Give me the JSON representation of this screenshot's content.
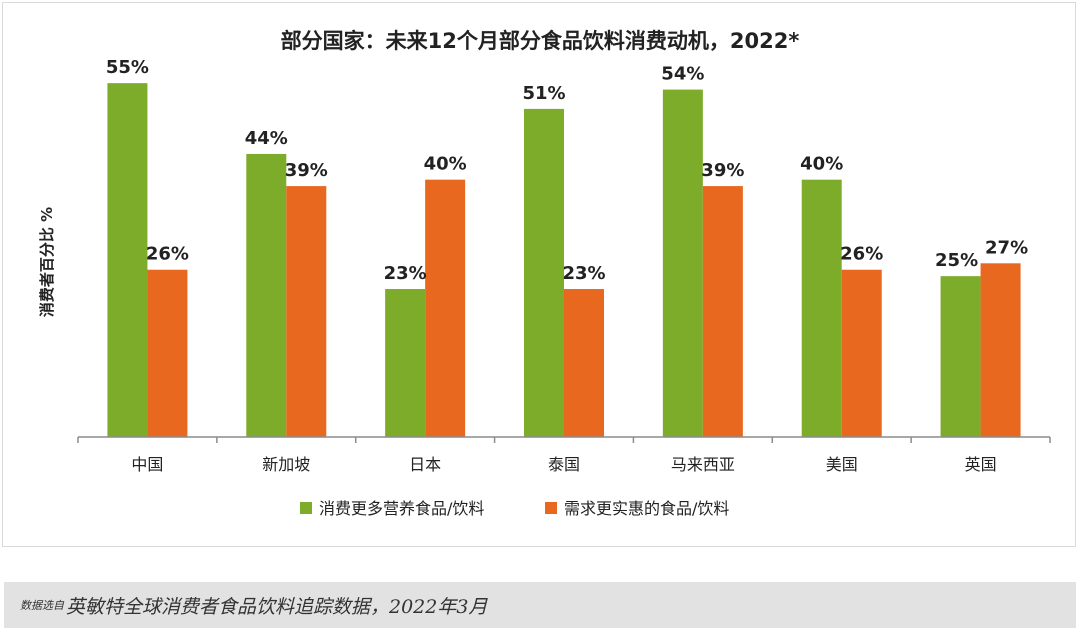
{
  "chart_data": {
    "type": "bar",
    "title": "部分国家：未来12个月部分食品饮料消费动机，2022*",
    "xlabel": "",
    "ylabel": "消费者百分比 %",
    "ylim": [
      0,
      60
    ],
    "categories": [
      "中国",
      "新加坡",
      "日本",
      "泰国",
      "马来西亚",
      "美国",
      "英国"
    ],
    "series": [
      {
        "name": "消费更多营养食品/饮料",
        "color": "#7dab2a",
        "values": [
          55,
          44,
          23,
          51,
          54,
          40,
          25
        ],
        "labels": [
          "55%",
          "44%",
          "23%",
          "51%",
          "54%",
          "40%",
          "25%"
        ]
      },
      {
        "name": "需求更实惠的食品/饮料",
        "color": "#e8681f",
        "values": [
          26,
          39,
          40,
          23,
          39,
          26,
          27
        ],
        "labels": [
          "26%",
          "39%",
          "40%",
          "23%",
          "39%",
          "26%",
          "27%"
        ]
      }
    ],
    "legend_position": "bottom",
    "grid": false
  },
  "footer": {
    "source_prefix": "数据选自",
    "source_text": "英敏特全球消费者食品饮料追踪数据，2022年3月"
  }
}
